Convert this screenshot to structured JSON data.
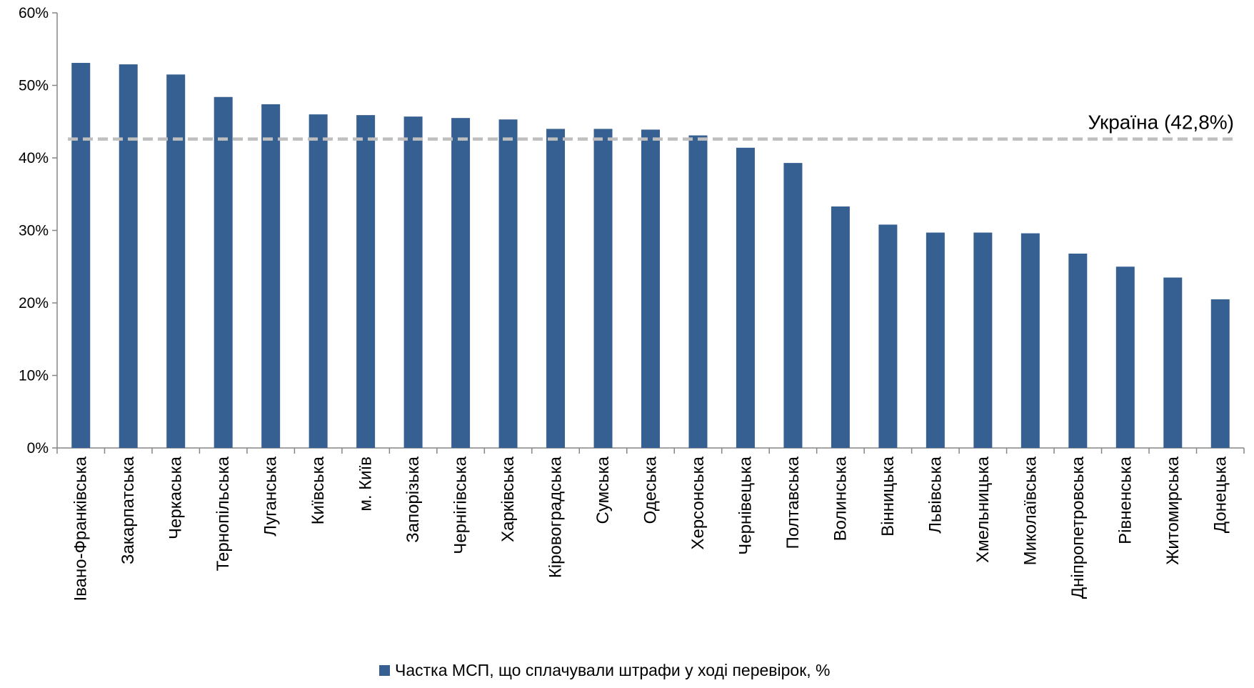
{
  "chart_data": {
    "type": "bar",
    "categories": [
      "Івано-Франківська",
      "Закарпатська",
      "Черкаська",
      "Тернопільська",
      "Луганська",
      "Київська",
      "м. Київ",
      "Запорізька",
      "Чернігівська",
      "Харківська",
      "Кіровоградська",
      "Сумська",
      "Одеська",
      "Херсонська",
      "Чернівецька",
      "Полтавська",
      "Волинська",
      "Вінницька",
      "Львівська",
      "Хмельницька",
      "Миколаївська",
      "Дніпропетровська",
      "Рівненська",
      "Житомирська",
      "Донецька"
    ],
    "series": [
      {
        "name": "Частка МСП, що сплачували штрафи у ході перевірок, %",
        "color": "#376092",
        "values": [
          53.1,
          52.9,
          51.5,
          48.4,
          47.4,
          46.0,
          45.9,
          45.7,
          45.5,
          45.3,
          44.0,
          44.0,
          43.9,
          43.1,
          41.4,
          39.3,
          33.3,
          30.8,
          29.7,
          29.7,
          29.6,
          26.8,
          25.0,
          23.5,
          20.5
        ]
      }
    ],
    "ylim": [
      0,
      60
    ],
    "yticks": [
      0,
      10,
      20,
      30,
      40,
      50,
      60
    ],
    "ytick_labels": [
      "0%",
      "10%",
      "20%",
      "30%",
      "40%",
      "50%",
      "60%"
    ],
    "reference_line": {
      "label": "Україна (42,8%)",
      "value": 42.8,
      "style": "dashed",
      "color": "#BFBFBF"
    },
    "legend_position": "bottom",
    "grid": false,
    "title": "",
    "xlabel": "",
    "ylabel": ""
  }
}
